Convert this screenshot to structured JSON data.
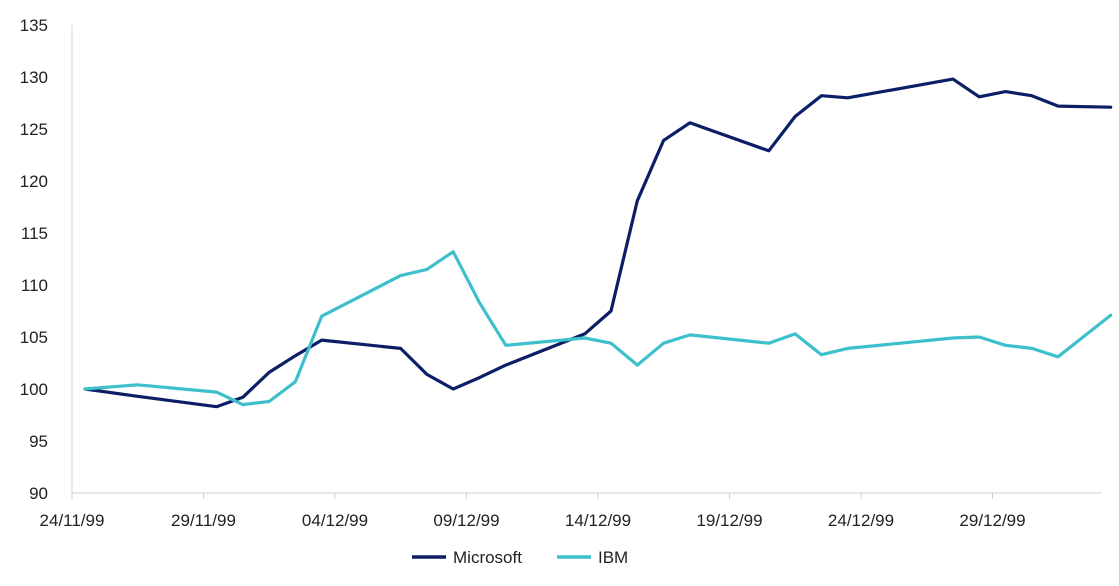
{
  "chart_data": {
    "type": "line",
    "title": "",
    "xlabel": "",
    "ylabel": "",
    "x_tick_labels": [
      "24/11/99",
      "29/11/99",
      "04/12/99",
      "09/12/99",
      "14/12/99",
      "19/12/99",
      "24/12/99",
      "29/12/99"
    ],
    "y_tick_labels": [
      "90",
      "95",
      "100",
      "105",
      "110",
      "115",
      "120",
      "125",
      "130",
      "135"
    ],
    "ylim": [
      90,
      135
    ],
    "xlim": [
      "1999-11-24",
      "2000-01-02"
    ],
    "grid": false,
    "legend_position": "bottom",
    "series": [
      {
        "name": "Microsoft",
        "color": "#0c1f66",
        "points": [
          [
            "1999-11-24",
            100.0
          ],
          [
            "1999-11-26",
            99.3
          ],
          [
            "1999-11-29",
            98.3
          ],
          [
            "1999-11-30",
            99.2
          ],
          [
            "1999-12-01",
            101.6
          ],
          [
            "1999-12-02",
            103.2
          ],
          [
            "1999-12-03",
            104.7
          ],
          [
            "1999-12-06",
            103.9
          ],
          [
            "1999-12-07",
            101.4
          ],
          [
            "1999-12-08",
            100.0
          ],
          [
            "1999-12-09",
            101.1
          ],
          [
            "1999-12-10",
            102.3
          ],
          [
            "1999-12-13",
            105.3
          ],
          [
            "1999-12-14",
            107.5
          ],
          [
            "1999-12-15",
            118.1
          ],
          [
            "1999-12-16",
            123.9
          ],
          [
            "1999-12-17",
            125.6
          ],
          [
            "1999-12-20",
            122.9
          ],
          [
            "1999-12-21",
            126.2
          ],
          [
            "1999-12-22",
            128.2
          ],
          [
            "1999-12-23",
            128.0
          ],
          [
            "1999-12-27",
            129.8
          ],
          [
            "1999-12-28",
            128.1
          ],
          [
            "1999-12-29",
            128.6
          ],
          [
            "1999-12-30",
            128.2
          ],
          [
            "1999-12-31",
            127.2
          ],
          [
            "2000-01-02",
            127.1
          ]
        ]
      },
      {
        "name": "IBM",
        "color": "#3dbfcc",
        "points": [
          [
            "1999-11-24",
            100.0
          ],
          [
            "1999-11-26",
            100.4
          ],
          [
            "1999-11-29",
            99.7
          ],
          [
            "1999-11-30",
            98.5
          ],
          [
            "1999-12-01",
            98.8
          ],
          [
            "1999-12-02",
            100.7
          ],
          [
            "1999-12-03",
            107.0
          ],
          [
            "1999-12-06",
            110.9
          ],
          [
            "1999-12-07",
            111.5
          ],
          [
            "1999-12-08",
            113.2
          ],
          [
            "1999-12-09",
            108.3
          ],
          [
            "1999-12-10",
            104.2
          ],
          [
            "1999-12-13",
            104.9
          ],
          [
            "1999-12-14",
            104.4
          ],
          [
            "1999-12-15",
            102.3
          ],
          [
            "1999-12-16",
            104.4
          ],
          [
            "1999-12-17",
            105.2
          ],
          [
            "1999-12-20",
            104.4
          ],
          [
            "1999-12-21",
            105.3
          ],
          [
            "1999-12-22",
            103.3
          ],
          [
            "1999-12-23",
            103.9
          ],
          [
            "1999-12-27",
            104.9
          ],
          [
            "1999-12-28",
            105.0
          ],
          [
            "1999-12-29",
            104.2
          ],
          [
            "1999-12-30",
            103.9
          ],
          [
            "1999-12-31",
            103.1
          ],
          [
            "2000-01-02",
            107.1
          ]
        ]
      }
    ]
  }
}
